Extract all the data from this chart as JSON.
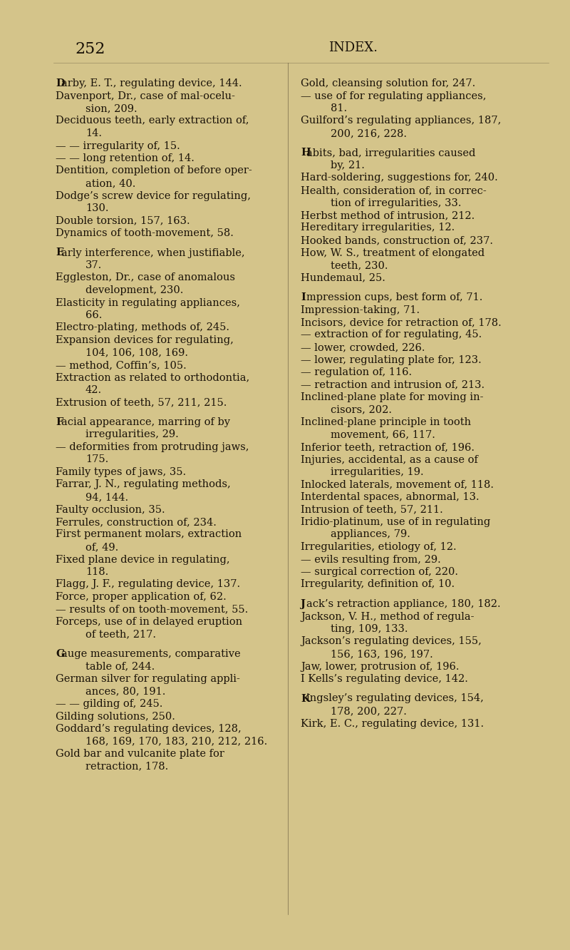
{
  "background_color": "#d4c48a",
  "text_color": "#1a1208",
  "page_number": "252",
  "header": "INDEX.",
  "left_column": [
    {
      "indent": 0,
      "bold_first": true,
      "bold_char": "D",
      "text": "arby, E. T., regulating device, 144."
    },
    {
      "indent": 0,
      "bold_first": false,
      "text": "Davenport, Dr., case of mal-ocelu-"
    },
    {
      "indent": 1,
      "bold_first": false,
      "text": "sion, 209."
    },
    {
      "indent": 0,
      "bold_first": false,
      "text": "Deciduous teeth, early extraction of,"
    },
    {
      "indent": 1,
      "bold_first": false,
      "text": "14."
    },
    {
      "indent": 0,
      "bold_first": false,
      "text": "— — irregularity of, 15."
    },
    {
      "indent": 0,
      "bold_first": false,
      "text": "— — long retention of, 14."
    },
    {
      "indent": 0,
      "bold_first": false,
      "text": "Dentition, completion of before oper-"
    },
    {
      "indent": 1,
      "bold_first": false,
      "text": "ation, 40."
    },
    {
      "indent": 0,
      "bold_first": false,
      "text": "Dodge’s screw device for regulating,"
    },
    {
      "indent": 1,
      "bold_first": false,
      "text": "130."
    },
    {
      "indent": 0,
      "bold_first": false,
      "text": "Double torsion, 157, 163."
    },
    {
      "indent": 0,
      "bold_first": false,
      "text": "Dynamics of tooth-movement, 58."
    },
    {
      "indent": -1,
      "bold_first": false,
      "text": ""
    },
    {
      "indent": 0,
      "bold_first": true,
      "bold_char": "E",
      "text": "arly interference, when justifiable,"
    },
    {
      "indent": 1,
      "bold_first": false,
      "text": "37."
    },
    {
      "indent": 0,
      "bold_first": false,
      "text": "Eggleston, Dr., case of anomalous"
    },
    {
      "indent": 1,
      "bold_first": false,
      "text": "development, 230."
    },
    {
      "indent": 0,
      "bold_first": false,
      "text": "Elasticity in regulating appliances,"
    },
    {
      "indent": 1,
      "bold_first": false,
      "text": "66."
    },
    {
      "indent": 0,
      "bold_first": false,
      "text": "Electro-plating, methods of, 245."
    },
    {
      "indent": 0,
      "bold_first": false,
      "text": "Expansion devices for regulating,"
    },
    {
      "indent": 1,
      "bold_first": false,
      "text": "104, 106, 108, 169."
    },
    {
      "indent": 0,
      "bold_first": false,
      "text": "— method, Coffin’s, 105."
    },
    {
      "indent": 0,
      "bold_first": false,
      "text": "Extraction as related to orthodontia,"
    },
    {
      "indent": 1,
      "bold_first": false,
      "text": "42."
    },
    {
      "indent": 0,
      "bold_first": false,
      "text": "Extrusion of teeth, 57, 211, 215."
    },
    {
      "indent": -1,
      "bold_first": false,
      "text": ""
    },
    {
      "indent": 0,
      "bold_first": true,
      "bold_char": "F",
      "text": "acial appearance, marring of by"
    },
    {
      "indent": 1,
      "bold_first": false,
      "text": "irregularities, 29."
    },
    {
      "indent": 0,
      "bold_first": false,
      "text": "— deformities from protruding jaws,"
    },
    {
      "indent": 1,
      "bold_first": false,
      "text": "175."
    },
    {
      "indent": 0,
      "bold_first": false,
      "text": "Family types of jaws, 35."
    },
    {
      "indent": 0,
      "bold_first": false,
      "text": "Farrar, J. N., regulating methods,"
    },
    {
      "indent": 1,
      "bold_first": false,
      "text": "94, 144."
    },
    {
      "indent": 0,
      "bold_first": false,
      "text": "Faulty occlusion, 35."
    },
    {
      "indent": 0,
      "bold_first": false,
      "text": "Ferrules, construction of, 234."
    },
    {
      "indent": 0,
      "bold_first": false,
      "text": "First permanent molars, extraction"
    },
    {
      "indent": 1,
      "bold_first": false,
      "text": "of, 49."
    },
    {
      "indent": 0,
      "bold_first": false,
      "text": "Fixed plane device in regulating,"
    },
    {
      "indent": 1,
      "bold_first": false,
      "text": "118."
    },
    {
      "indent": 0,
      "bold_first": false,
      "text": "Flagg, J. F., regulating device, 137."
    },
    {
      "indent": 0,
      "bold_first": false,
      "text": "Force, proper application of, 62."
    },
    {
      "indent": 0,
      "bold_first": false,
      "text": "— results of on tooth-movement, 55."
    },
    {
      "indent": 0,
      "bold_first": false,
      "text": "Forceps, use of in delayed eruption"
    },
    {
      "indent": 1,
      "bold_first": false,
      "text": "of teeth, 217."
    },
    {
      "indent": -1,
      "bold_first": false,
      "text": ""
    },
    {
      "indent": 0,
      "bold_first": true,
      "bold_char": "G",
      "text": "auge measurements, comparative"
    },
    {
      "indent": 1,
      "bold_first": false,
      "text": "table of, 244."
    },
    {
      "indent": 0,
      "bold_first": false,
      "text": "German silver for regulating appli-"
    },
    {
      "indent": 1,
      "bold_first": false,
      "text": "ances, 80, 191."
    },
    {
      "indent": 0,
      "bold_first": false,
      "text": "— — gilding of, 245."
    },
    {
      "indent": 0,
      "bold_first": false,
      "text": "Gilding solutions, 250."
    },
    {
      "indent": 0,
      "bold_first": false,
      "text": "Goddard’s regulating devices, 128,"
    },
    {
      "indent": 1,
      "bold_first": false,
      "text": "168, 169, 170, 183, 210, 212, 216."
    },
    {
      "indent": 0,
      "bold_first": false,
      "text": "Gold bar and vulcanite plate for"
    },
    {
      "indent": 1,
      "bold_first": false,
      "text": "retraction, 178."
    }
  ],
  "right_column": [
    {
      "indent": 0,
      "bold_first": false,
      "text": "Gold, cleansing solution for, 247."
    },
    {
      "indent": 0,
      "bold_first": false,
      "text": "— use of for regulating appliances,"
    },
    {
      "indent": 1,
      "bold_first": false,
      "text": "81."
    },
    {
      "indent": 0,
      "bold_first": false,
      "text": "Guilford’s regulating appliances, 187,"
    },
    {
      "indent": 1,
      "bold_first": false,
      "text": "200, 216, 228."
    },
    {
      "indent": -1,
      "bold_first": false,
      "text": ""
    },
    {
      "indent": 0,
      "bold_first": true,
      "bold_char": "H",
      "text": "abits, bad, irregularities caused"
    },
    {
      "indent": 1,
      "bold_first": false,
      "text": "by, 21."
    },
    {
      "indent": 0,
      "bold_first": false,
      "text": "Hard-soldering, suggestions for, 240."
    },
    {
      "indent": 0,
      "bold_first": false,
      "text": "Health, consideration of, in correc-"
    },
    {
      "indent": 1,
      "bold_first": false,
      "text": "tion of irregularities, 33."
    },
    {
      "indent": 0,
      "bold_first": false,
      "text": "Herbst method of intrusion, 212."
    },
    {
      "indent": 0,
      "bold_first": false,
      "text": "Hereditary irregularities, 12."
    },
    {
      "indent": 0,
      "bold_first": false,
      "text": "Hooked bands, construction of, 237."
    },
    {
      "indent": 0,
      "bold_first": false,
      "text": "How, W. S., treatment of elongated"
    },
    {
      "indent": 1,
      "bold_first": false,
      "text": "teeth, 230."
    },
    {
      "indent": 0,
      "bold_first": false,
      "text": "Hundemaul, 25."
    },
    {
      "indent": -1,
      "bold_first": false,
      "text": ""
    },
    {
      "indent": 0,
      "bold_first": true,
      "bold_char": "I",
      "text": "mpression cups, best form of, 71."
    },
    {
      "indent": 0,
      "bold_first": false,
      "text": "Impression-taking, 71."
    },
    {
      "indent": 0,
      "bold_first": false,
      "text": "Incisors, device for retraction of, 178."
    },
    {
      "indent": 0,
      "bold_first": false,
      "text": "— extraction of for regulating, 45."
    },
    {
      "indent": 0,
      "bold_first": false,
      "text": "— lower, crowded, 226."
    },
    {
      "indent": 0,
      "bold_first": false,
      "text": "— lower, regulating plate for, 123."
    },
    {
      "indent": 0,
      "bold_first": false,
      "text": "— regulation of, 116."
    },
    {
      "indent": 0,
      "bold_first": false,
      "text": "— retraction and intrusion of, 213."
    },
    {
      "indent": 0,
      "bold_first": false,
      "text": "Inclined-plane plate for moving in-"
    },
    {
      "indent": 1,
      "bold_first": false,
      "text": "cisors, 202."
    },
    {
      "indent": 0,
      "bold_first": false,
      "text": "Inclined-plane principle in tooth"
    },
    {
      "indent": 1,
      "bold_first": false,
      "text": "movement, 66, 117."
    },
    {
      "indent": 0,
      "bold_first": false,
      "text": "Inferior teeth, retraction of, 196."
    },
    {
      "indent": 0,
      "bold_first": false,
      "text": "Injuries, accidental, as a cause of"
    },
    {
      "indent": 1,
      "bold_first": false,
      "text": "irregularities, 19."
    },
    {
      "indent": 0,
      "bold_first": false,
      "text": "Inlocked laterals, movement of, 118."
    },
    {
      "indent": 0,
      "bold_first": false,
      "text": "Interdental spaces, abnormal, 13."
    },
    {
      "indent": 0,
      "bold_first": false,
      "text": "Intrusion of teeth, 57, 211."
    },
    {
      "indent": 0,
      "bold_first": false,
      "text": "Iridio-platinum, use of in regulating"
    },
    {
      "indent": 1,
      "bold_first": false,
      "text": "appliances, 79."
    },
    {
      "indent": 0,
      "bold_first": false,
      "text": "Irregularities, etiology of, 12."
    },
    {
      "indent": 0,
      "bold_first": false,
      "text": "— evils resulting from, 29."
    },
    {
      "indent": 0,
      "bold_first": false,
      "text": "— surgical correction of, 220."
    },
    {
      "indent": 0,
      "bold_first": false,
      "text": "Irregularity, definition of, 10."
    },
    {
      "indent": -1,
      "bold_first": false,
      "text": ""
    },
    {
      "indent": 0,
      "bold_first": true,
      "bold_char": "J",
      "text": "ack’s retraction appliance, 180, 182."
    },
    {
      "indent": 0,
      "bold_first": false,
      "text": "Jackson, V. H., method of regula-"
    },
    {
      "indent": 1,
      "bold_first": false,
      "text": "ting, 109, 133."
    },
    {
      "indent": 0,
      "bold_first": false,
      "text": "Jackson’s regulating devices, 155,"
    },
    {
      "indent": 1,
      "bold_first": false,
      "text": "156, 163, 196, 197."
    },
    {
      "indent": 0,
      "bold_first": false,
      "text": "Jaw, lower, protrusion of, 196."
    },
    {
      "indent": 0,
      "bold_first": false,
      "text": "I Kells’s regulating device, 142."
    },
    {
      "indent": -1,
      "bold_first": false,
      "text": ""
    },
    {
      "indent": 0,
      "bold_first": true,
      "bold_char": "K",
      "text": "ingsley’s regulating devices, 154,"
    },
    {
      "indent": 1,
      "bold_first": false,
      "text": "178, 200, 227."
    },
    {
      "indent": 0,
      "bold_first": false,
      "text": "Kirk, E. C., regulating device, 131."
    }
  ]
}
